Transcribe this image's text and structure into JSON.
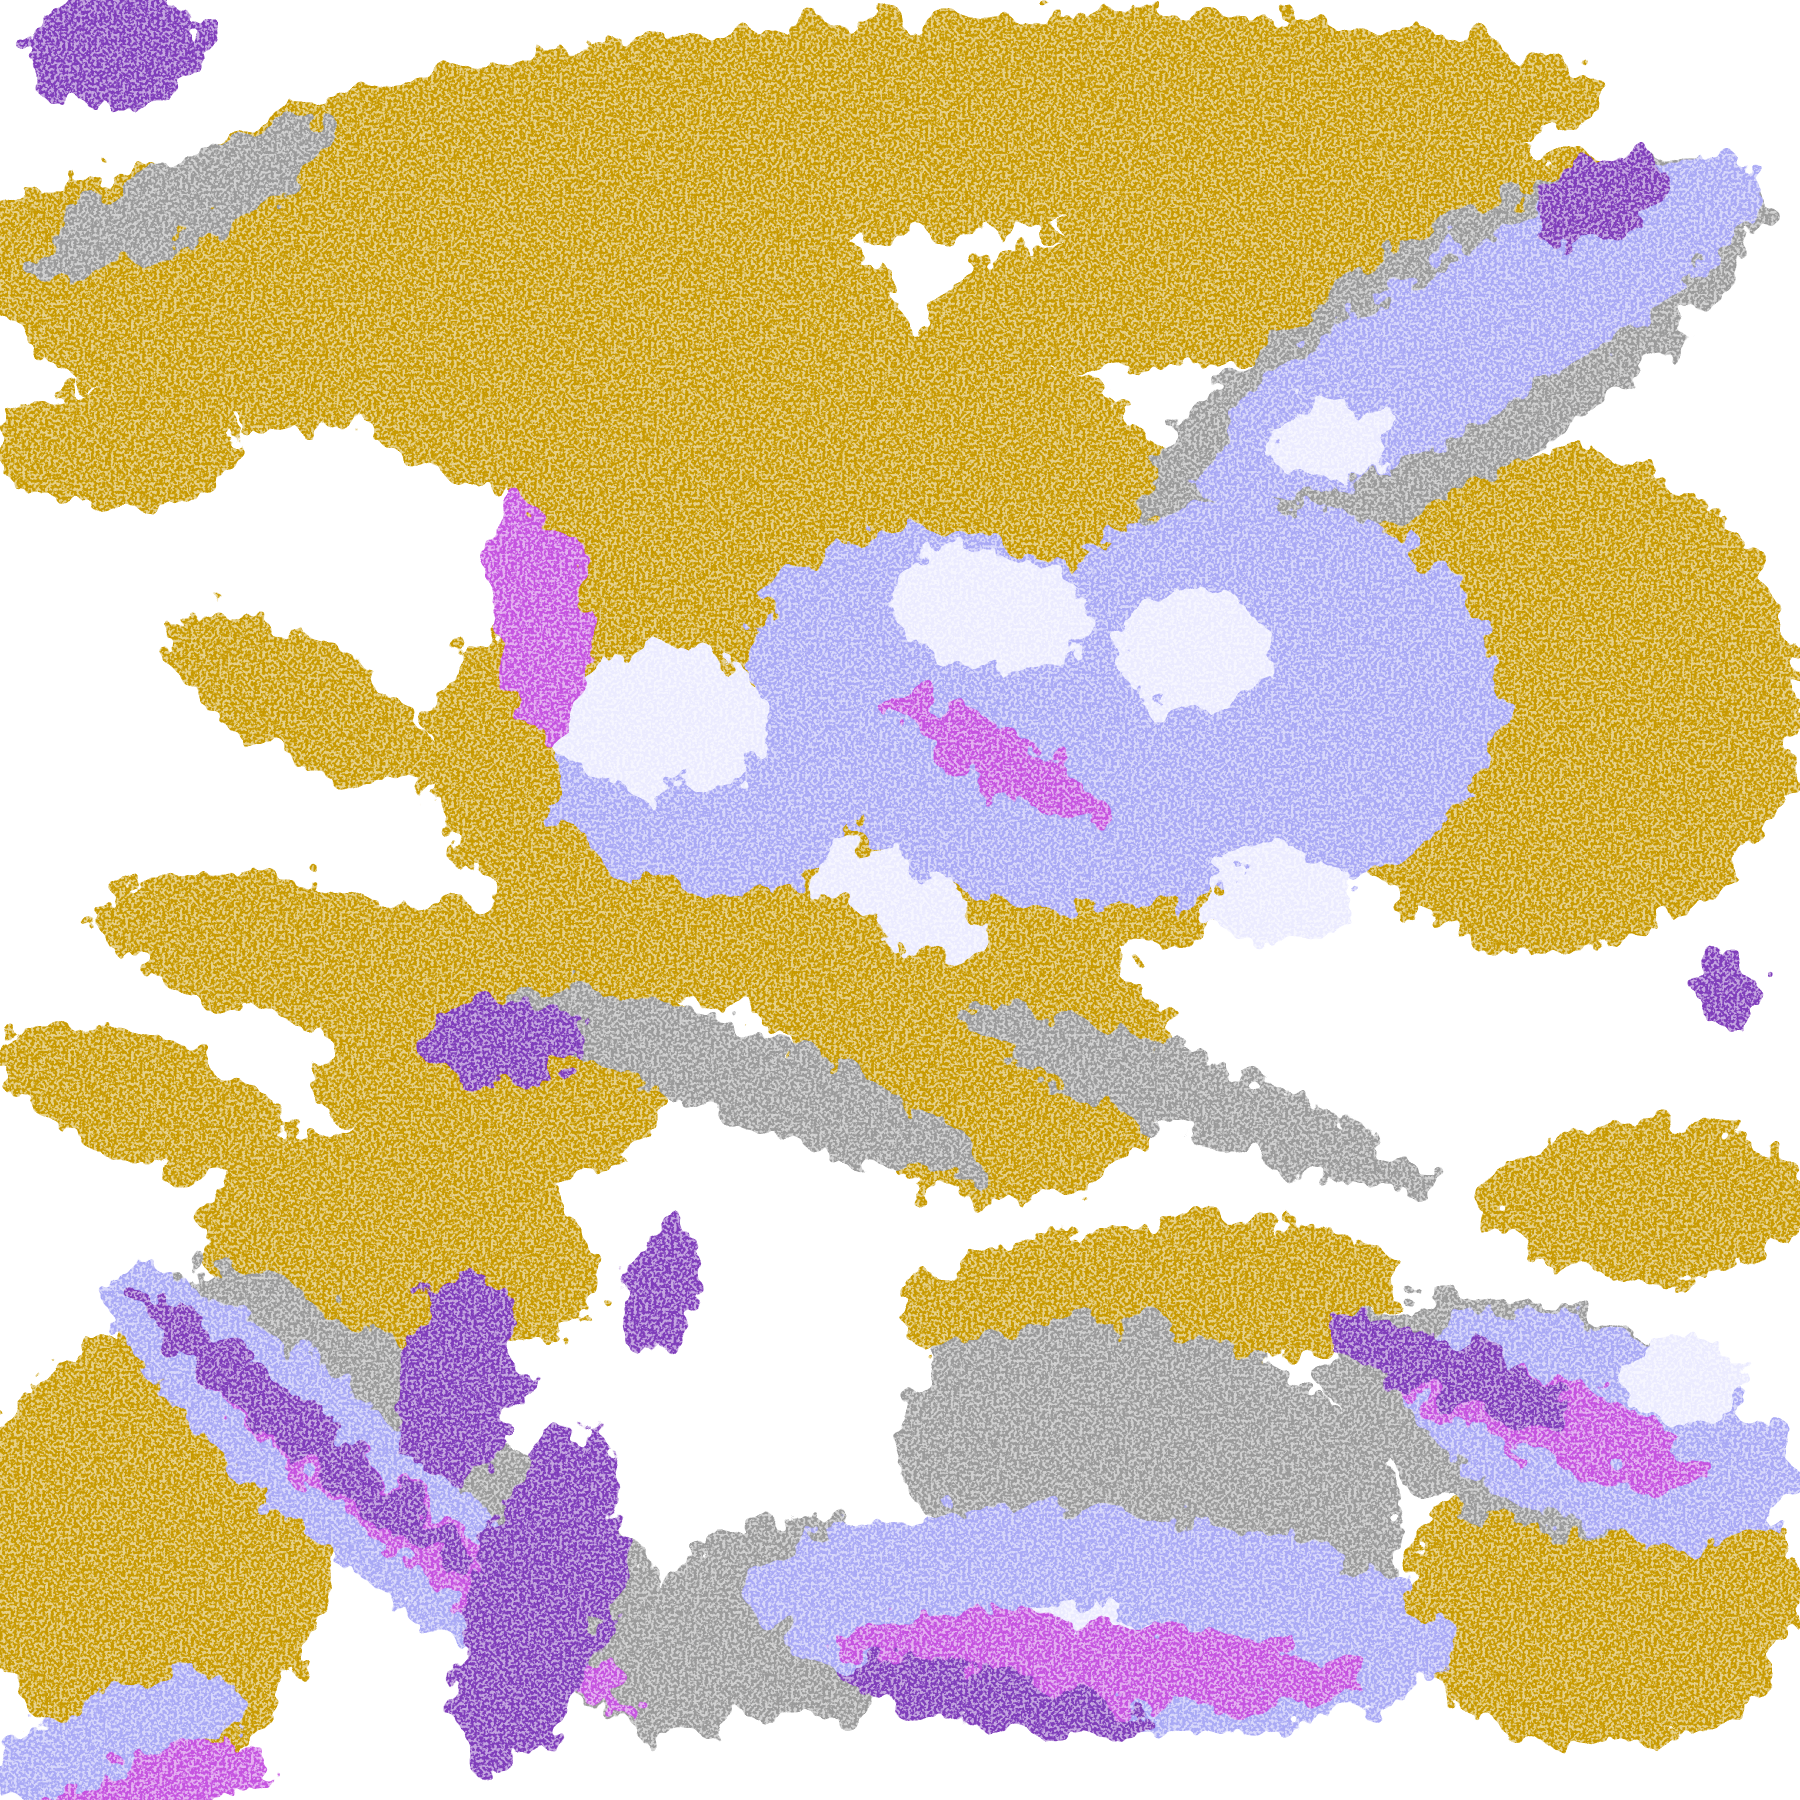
{
  "image": {
    "kind": "false-color satellite cloud classification",
    "palette": {
      "background": "#ffffff",
      "gold": "#c89a00",
      "dark_gold": "#b08800",
      "purple": "#7f3dbb",
      "magenta": "#c552e0",
      "lavender": "#a9a9f5",
      "pale_lavender": "#ebebff",
      "gray": "#9a9a9a",
      "light_gray": "#bcbcbc"
    }
  }
}
